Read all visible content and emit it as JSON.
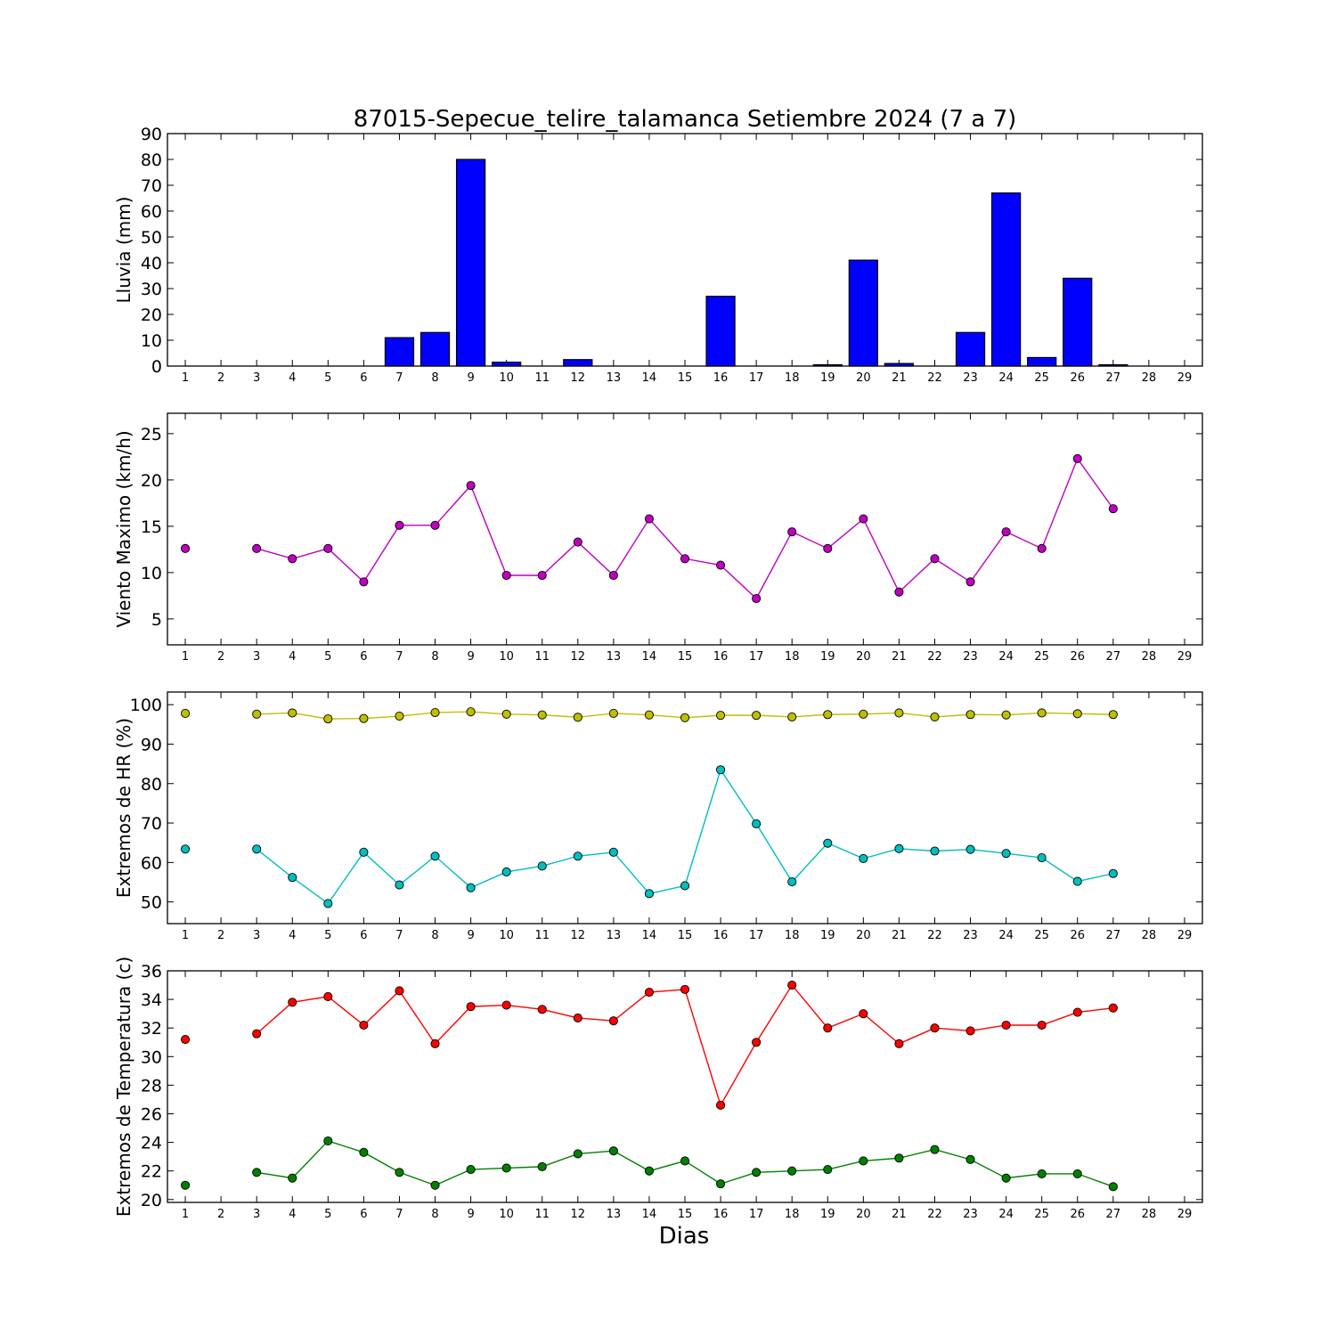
{
  "title": "87015-Sepecue_telire_talamanca Setiembre 2024  (7 a 7)",
  "xlabel": "Dias",
  "x_ticks": [
    1,
    2,
    3,
    4,
    5,
    6,
    7,
    8,
    9,
    10,
    11,
    12,
    13,
    14,
    15,
    16,
    17,
    18,
    19,
    20,
    21,
    22,
    23,
    24,
    25,
    26,
    27,
    28,
    29
  ],
  "chart_data": [
    {
      "type": "bar",
      "ylabel": "Lluvia (mm)",
      "ylim": [
        0,
        90
      ],
      "yticks": [
        0,
        10,
        20,
        30,
        40,
        50,
        60,
        70,
        80,
        90
      ],
      "x": [
        1,
        2,
        3,
        4,
        5,
        6,
        7,
        8,
        9,
        10,
        11,
        12,
        13,
        14,
        15,
        16,
        17,
        18,
        19,
        20,
        21,
        22,
        23,
        24,
        25,
        26,
        27,
        28,
        29
      ],
      "values": [
        0,
        0,
        0,
        0,
        0,
        0,
        11,
        13,
        80,
        1.5,
        0,
        2.5,
        0,
        0,
        0,
        27,
        0,
        0,
        0.5,
        41,
        1,
        0,
        13,
        67,
        3.3,
        34,
        0.5,
        null,
        null
      ],
      "color": "#0000ff",
      "grid": false
    },
    {
      "type": "line",
      "ylabel": "Viento Maximo (km/h)",
      "ylim": [
        2.2,
        27.2
      ],
      "yticks": [
        5,
        10,
        15,
        20,
        25
      ],
      "series": [
        {
          "color": "#bf00bf",
          "points": [
            [
              1,
              12.6
            ],
            [
              3,
              12.6
            ],
            [
              4,
              11.5
            ],
            [
              5,
              12.6
            ],
            [
              6,
              9.0
            ],
            [
              7,
              15.1
            ],
            [
              8,
              15.1
            ],
            [
              9,
              19.4
            ],
            [
              10,
              9.7
            ],
            [
              11,
              9.7
            ],
            [
              12,
              13.3
            ],
            [
              13,
              9.7
            ],
            [
              14,
              15.8
            ],
            [
              15,
              11.5
            ],
            [
              16,
              10.8
            ],
            [
              17,
              7.2
            ],
            [
              18,
              14.4
            ],
            [
              19,
              12.6
            ],
            [
              20,
              15.8
            ],
            [
              21,
              7.9
            ],
            [
              22,
              11.5
            ],
            [
              23,
              9.0
            ],
            [
              24,
              14.4
            ],
            [
              25,
              12.6
            ],
            [
              26,
              22.3
            ],
            [
              27,
              16.9
            ]
          ]
        }
      ],
      "grid": false
    },
    {
      "type": "line",
      "ylabel": "Extremos de HR (%)",
      "ylim": [
        44.5,
        103.2
      ],
      "yticks": [
        50,
        60,
        70,
        80,
        90,
        100
      ],
      "series": [
        {
          "color": "#bfbf00",
          "points": [
            [
              1,
              97.8
            ],
            [
              3,
              97.6
            ],
            [
              4,
              97.9
            ],
            [
              5,
              96.4
            ],
            [
              6,
              96.5
            ],
            [
              7,
              97.1
            ],
            [
              8,
              98.0
            ],
            [
              9,
              98.2
            ],
            [
              10,
              97.6
            ],
            [
              11,
              97.4
            ],
            [
              12,
              96.8
            ],
            [
              13,
              97.8
            ],
            [
              14,
              97.4
            ],
            [
              15,
              96.7
            ],
            [
              16,
              97.3
            ],
            [
              17,
              97.3
            ],
            [
              18,
              96.9
            ],
            [
              19,
              97.5
            ],
            [
              20,
              97.6
            ],
            [
              21,
              97.9
            ],
            [
              22,
              96.9
            ],
            [
              23,
              97.5
            ],
            [
              24,
              97.4
            ],
            [
              25,
              97.9
            ],
            [
              26,
              97.7
            ],
            [
              27,
              97.5
            ]
          ]
        },
        {
          "color": "#00bfbf",
          "points": [
            [
              1,
              63.4
            ],
            [
              3,
              63.4
            ],
            [
              4,
              56.2
            ],
            [
              5,
              49.6
            ],
            [
              6,
              62.6
            ],
            [
              7,
              54.3
            ],
            [
              8,
              61.6
            ],
            [
              9,
              53.6
            ],
            [
              10,
              57.6
            ],
            [
              11,
              59.1
            ],
            [
              12,
              61.6
            ],
            [
              13,
              62.6
            ],
            [
              14,
              52.1
            ],
            [
              15,
              54.1
            ],
            [
              16,
              83.5
            ],
            [
              17,
              69.8
            ],
            [
              18,
              55.1
            ],
            [
              19,
              64.9
            ],
            [
              20,
              61.0
            ],
            [
              21,
              63.5
            ],
            [
              22,
              62.9
            ],
            [
              23,
              63.3
            ],
            [
              24,
              62.3
            ],
            [
              25,
              61.2
            ],
            [
              26,
              55.2
            ],
            [
              27,
              57.2
            ]
          ]
        }
      ],
      "grid": false
    },
    {
      "type": "line",
      "ylabel": "Extremos de Temperatura (c)",
      "ylim": [
        19.8,
        36
      ],
      "yticks": [
        20,
        22,
        24,
        26,
        28,
        30,
        32,
        34,
        36
      ],
      "series": [
        {
          "color": "#ff0000",
          "points": [
            [
              1,
              31.2
            ],
            [
              3,
              31.6
            ],
            [
              4,
              33.8
            ],
            [
              5,
              34.2
            ],
            [
              6,
              32.2
            ],
            [
              7,
              34.6
            ],
            [
              8,
              30.9
            ],
            [
              9,
              33.5
            ],
            [
              10,
              33.6
            ],
            [
              11,
              33.3
            ],
            [
              12,
              32.7
            ],
            [
              13,
              32.5
            ],
            [
              14,
              34.5
            ],
            [
              15,
              34.7
            ],
            [
              16,
              26.6
            ],
            [
              17,
              31.0
            ],
            [
              18,
              35.0
            ],
            [
              19,
              32.0
            ],
            [
              20,
              33.0
            ],
            [
              21,
              30.9
            ],
            [
              22,
              32.0
            ],
            [
              23,
              31.8
            ],
            [
              24,
              32.2
            ],
            [
              25,
              32.2
            ],
            [
              26,
              33.1
            ],
            [
              27,
              33.4
            ]
          ]
        },
        {
          "color": "#008000",
          "points": [
            [
              1,
              21.0
            ],
            [
              3,
              21.9
            ],
            [
              4,
              21.5
            ],
            [
              5,
              24.1
            ],
            [
              6,
              23.3
            ],
            [
              7,
              21.9
            ],
            [
              8,
              21.0
            ],
            [
              9,
              22.1
            ],
            [
              10,
              22.2
            ],
            [
              11,
              22.3
            ],
            [
              12,
              23.2
            ],
            [
              13,
              23.4
            ],
            [
              14,
              22.0
            ],
            [
              15,
              22.7
            ],
            [
              16,
              21.1
            ],
            [
              17,
              21.9
            ],
            [
              18,
              22.0
            ],
            [
              19,
              22.1
            ],
            [
              20,
              22.7
            ],
            [
              21,
              22.9
            ],
            [
              22,
              23.5
            ],
            [
              23,
              22.8
            ],
            [
              24,
              21.5
            ],
            [
              25,
              21.8
            ],
            [
              26,
              21.8
            ],
            [
              27,
              20.9
            ]
          ]
        }
      ],
      "grid": false
    }
  ]
}
